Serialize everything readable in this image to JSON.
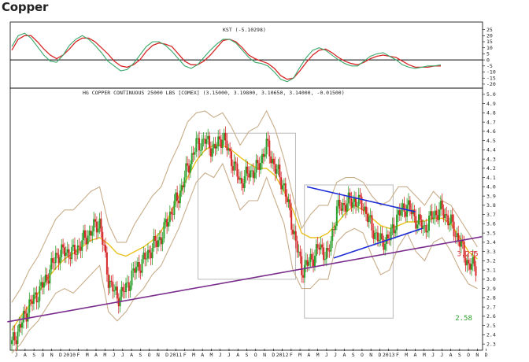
{
  "page": {
    "title": "Copper"
  },
  "colors": {
    "up": "#2ca02c",
    "down": "#d62728",
    "kst": "#d62728",
    "kst_signal": "#3aa86a",
    "ma_fast": "#e8c21e",
    "envelope": "#c8ad8a",
    "support": "#7a2d8c",
    "triangle": "#1b2bd6",
    "box": "#b8b8b8",
    "zero_line": "#000000"
  },
  "chart_data": [
    {
      "type": "line",
      "title": "KST (-5.10298)",
      "ylim": [
        -22,
        28
      ],
      "y_ticks": [
        "25",
        "20",
        "15",
        "10",
        "5",
        "0",
        "-5",
        "-10",
        "-15",
        "-20"
      ],
      "y_tick_values": [
        25,
        20,
        15,
        10,
        5,
        0,
        -5,
        -10,
        -15,
        -20
      ],
      "series": [
        {
          "name": "",
          "values": [
            8,
            17,
            20,
            20,
            15,
            9,
            4,
            1,
            4,
            9,
            15,
            18,
            18,
            15,
            10,
            5,
            -1,
            -5,
            -6,
            -4,
            0,
            7,
            12,
            14,
            13,
            11,
            5,
            -1,
            -4,
            -4,
            -1,
            4,
            10,
            16,
            17,
            15,
            10,
            4,
            1,
            -1,
            -3,
            -7,
            -13,
            -16,
            -15,
            -9,
            -2,
            4,
            8,
            9,
            6,
            2,
            -1,
            -3,
            -4,
            -2,
            1,
            3,
            4,
            3,
            2,
            -1,
            -4,
            -6,
            -6,
            -6,
            -5,
            -5
          ]
        },
        {
          "name": "",
          "values": [
            11,
            20,
            22,
            18,
            11,
            4,
            -1,
            -2,
            4,
            12,
            17,
            20,
            17,
            12,
            6,
            -1,
            -5,
            -9,
            -8,
            -3,
            4,
            11,
            15,
            15,
            12,
            7,
            1,
            -5,
            -7,
            -4,
            2,
            8,
            13,
            17,
            17,
            14,
            8,
            2,
            -2,
            -3,
            -5,
            -10,
            -16,
            -18,
            -15,
            -6,
            2,
            8,
            10,
            8,
            4,
            0,
            -3,
            -5,
            -5,
            -1,
            3,
            5,
            6,
            3,
            0,
            -4,
            -6,
            -7,
            -6,
            -5,
            -5,
            -4
          ]
        }
      ]
    },
    {
      "type": "candlestick",
      "title": "HG COPPER CONTINUOUS 25000 LBS [COMEX] (3.15000, 3.19800, 3.10650, 3.14000, -0.01500)",
      "ylim": [
        2.25,
        5.05
      ],
      "y_ticks": [
        "5.0",
        "4.9",
        "4.8",
        "4.7",
        "4.6",
        "4.5",
        "4.4",
        "4.3",
        "4.2",
        "4.1",
        "4.0",
        "3.9",
        "3.8",
        "3.7",
        "3.6",
        "3.5",
        "3.4",
        "3.3",
        "3.2",
        "3.1",
        "3.0",
        "2.9",
        "2.8",
        "2.7",
        "2.6",
        "2.5",
        "2.4",
        "2.3"
      ],
      "y_tick_values": [
        5.0,
        4.9,
        4.8,
        4.7,
        4.6,
        4.5,
        4.4,
        4.3,
        4.2,
        4.1,
        4.0,
        3.9,
        3.8,
        3.7,
        3.6,
        3.5,
        3.4,
        3.3,
        3.2,
        3.1,
        3.0,
        2.9,
        2.8,
        2.7,
        2.6,
        2.5,
        2.4,
        2.3
      ],
      "x_ticks": [
        "J",
        "A",
        "S",
        "O",
        "N",
        "D",
        "2010",
        "F",
        "M",
        "A",
        "M",
        "J",
        "J",
        "A",
        "S",
        "O",
        "N",
        "D",
        "2011",
        "F",
        "M",
        "A",
        "M",
        "J",
        "J",
        "A",
        "S",
        "O",
        "N",
        "D",
        "2012",
        "F",
        "M",
        "A",
        "M",
        "J",
        "J",
        "A",
        "S",
        "O",
        "N",
        "D",
        "2013",
        "F",
        "M",
        "A",
        "M",
        "J",
        "J",
        "A",
        "S",
        "O",
        "N",
        "D"
      ],
      "x_range": [
        0,
        53
      ],
      "close": [
        2.3,
        2.5,
        2.72,
        2.85,
        3.02,
        3.25,
        3.3,
        3.28,
        3.4,
        3.52,
        3.62,
        3.0,
        2.8,
        2.9,
        3.1,
        3.2,
        3.35,
        3.45,
        3.7,
        3.9,
        4.2,
        4.45,
        4.5,
        4.4,
        4.55,
        4.3,
        4.05,
        4.15,
        4.2,
        4.45,
        4.2,
        4.0,
        3.55,
        3.1,
        3.2,
        3.35,
        3.25,
        3.75,
        3.82,
        3.85,
        3.8,
        3.55,
        3.4,
        3.45,
        3.7,
        3.8,
        3.65,
        3.55,
        3.7,
        3.75,
        3.6,
        3.4,
        3.15,
        3.14
      ],
      "series": [
        {
          "name": "",
          "values": [
            2.45,
            2.6,
            2.72,
            2.85,
            3.0,
            3.12,
            3.22,
            3.28,
            3.35,
            3.42,
            3.45,
            3.38,
            3.28,
            3.25,
            3.3,
            3.35,
            3.42,
            3.52,
            3.7,
            3.9,
            4.1,
            4.28,
            4.4,
            4.45,
            4.45,
            4.4,
            4.32,
            4.25,
            4.2,
            4.2,
            4.12,
            3.95,
            3.75,
            3.5,
            3.45,
            3.45,
            3.5,
            3.6,
            3.72,
            3.8,
            3.75,
            3.66,
            3.58,
            3.55,
            3.58,
            3.62,
            3.62,
            3.63,
            3.66,
            3.66,
            3.6,
            3.45,
            3.3,
            3.22
          ]
        },
        {
          "name": "",
          "values": [
            2.75,
            2.9,
            3.1,
            3.25,
            3.45,
            3.65,
            3.75,
            3.75,
            3.85,
            3.95,
            4.0,
            3.6,
            3.4,
            3.4,
            3.6,
            3.75,
            3.9,
            4.0,
            4.25,
            4.45,
            4.7,
            4.8,
            4.82,
            4.75,
            4.8,
            4.65,
            4.45,
            4.6,
            4.65,
            4.82,
            4.62,
            4.3,
            3.9,
            3.55,
            3.7,
            3.8,
            3.8,
            4.05,
            4.1,
            4.1,
            4.05,
            3.9,
            3.8,
            3.85,
            4.0,
            4.0,
            3.9,
            3.8,
            3.95,
            3.85,
            3.8,
            3.65,
            3.5,
            3.35
          ]
        },
        {
          "name": "",
          "values": [
            2.2,
            2.3,
            2.45,
            2.55,
            2.7,
            2.85,
            2.9,
            2.85,
            2.95,
            3.05,
            3.15,
            2.65,
            2.55,
            2.65,
            2.8,
            2.9,
            3.05,
            3.15,
            3.35,
            3.55,
            3.8,
            4.05,
            4.15,
            4.1,
            4.25,
            4.0,
            3.75,
            3.85,
            3.85,
            4.1,
            3.85,
            3.6,
            3.1,
            2.9,
            2.9,
            3.0,
            3.0,
            3.4,
            3.5,
            3.55,
            3.5,
            3.25,
            3.05,
            3.1,
            3.35,
            3.5,
            3.3,
            3.2,
            3.4,
            3.45,
            3.3,
            3.1,
            2.95,
            2.9
          ]
        }
      ],
      "overlays": {
        "support_line": {
          "from": [
            -0.5,
            2.54
          ],
          "to": [
            53,
            3.46
          ]
        },
        "triangle_upper": {
          "from": [
            33.3,
            4.0
          ],
          "to": [
            45.5,
            3.73
          ]
        },
        "triangle_lower": {
          "from": [
            36.3,
            3.23
          ],
          "to": [
            46.3,
            3.55
          ]
        },
        "boxes": [
          {
            "x": [
              21.0,
              32.0
            ],
            "y": [
              3.0,
              4.58
            ]
          },
          {
            "x": [
              33.0,
              43.0
            ],
            "y": [
              2.58,
              4.02
            ]
          }
        ]
      },
      "annotations": [
        {
          "text": "3.275",
          "x": 50.2,
          "y": 3.275,
          "color": "#d62728"
        },
        {
          "text": "2.58",
          "x": 50.0,
          "y": 2.58,
          "color": "#2ca02c"
        }
      ]
    }
  ]
}
